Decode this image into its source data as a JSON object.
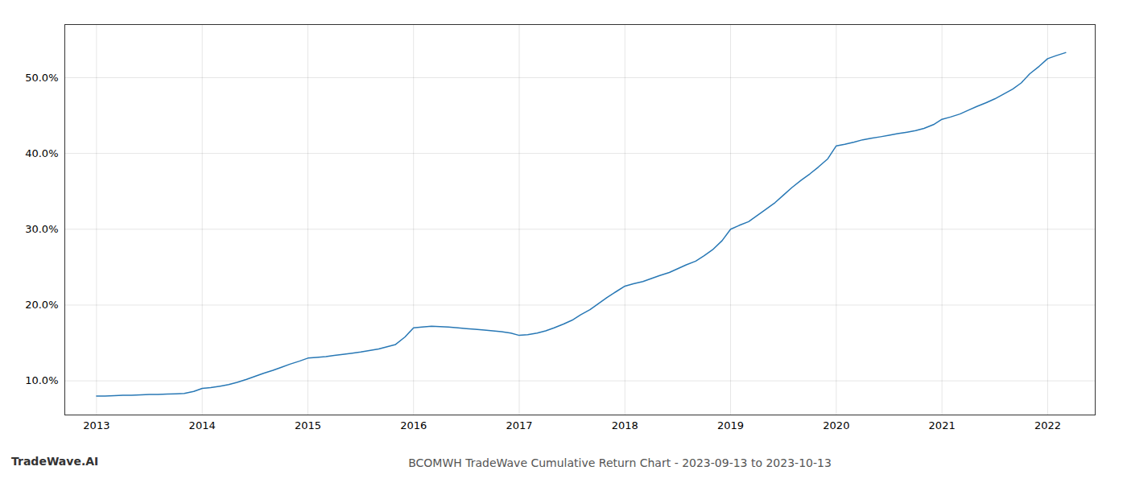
{
  "chart_data": {
    "type": "line",
    "title": "BCOMWH TradeWave Cumulative Return Chart - 2023-09-13 to 2023-10-13",
    "annotations": [
      "TradeWave.AI"
    ],
    "color": "#2878b5",
    "grid": true,
    "x": [
      2013.0,
      2013.08,
      2013.17,
      2013.25,
      2013.33,
      2013.42,
      2013.5,
      2013.58,
      2013.67,
      2013.75,
      2013.83,
      2013.92,
      2014.0,
      2014.08,
      2014.17,
      2014.25,
      2014.33,
      2014.42,
      2014.5,
      2014.58,
      2014.67,
      2014.75,
      2014.83,
      2014.92,
      2015.0,
      2015.08,
      2015.17,
      2015.25,
      2015.33,
      2015.42,
      2015.5,
      2015.58,
      2015.67,
      2015.75,
      2015.83,
      2015.92,
      2016.0,
      2016.08,
      2016.17,
      2016.25,
      2016.33,
      2016.42,
      2016.5,
      2016.58,
      2016.67,
      2016.75,
      2016.83,
      2016.92,
      2017.0,
      2017.08,
      2017.17,
      2017.25,
      2017.33,
      2017.42,
      2017.5,
      2017.58,
      2017.67,
      2017.75,
      2017.83,
      2017.92,
      2018.0,
      2018.08,
      2018.17,
      2018.25,
      2018.33,
      2018.42,
      2018.5,
      2018.58,
      2018.67,
      2018.75,
      2018.83,
      2018.92,
      2019.0,
      2019.08,
      2019.17,
      2019.25,
      2019.33,
      2019.42,
      2019.5,
      2019.58,
      2019.67,
      2019.75,
      2019.83,
      2019.92,
      2020.0,
      2020.08,
      2020.17,
      2020.25,
      2020.33,
      2020.42,
      2020.5,
      2020.58,
      2020.67,
      2020.75,
      2020.83,
      2020.92,
      2021.0,
      2021.08,
      2021.17,
      2021.25,
      2021.33,
      2021.42,
      2021.5,
      2021.58,
      2021.67,
      2021.75,
      2021.83,
      2021.92,
      2022.0,
      2022.08,
      2022.17
    ],
    "values": [
      8.0,
      8.0,
      8.05,
      8.1,
      8.1,
      8.15,
      8.2,
      8.2,
      8.25,
      8.3,
      8.35,
      8.6,
      9.0,
      9.1,
      9.3,
      9.5,
      9.8,
      10.2,
      10.6,
      11.0,
      11.4,
      11.8,
      12.2,
      12.6,
      13.0,
      13.1,
      13.2,
      13.35,
      13.5,
      13.65,
      13.8,
      14.0,
      14.2,
      14.5,
      14.8,
      15.8,
      17.0,
      17.1,
      17.2,
      17.15,
      17.1,
      17.0,
      16.9,
      16.8,
      16.7,
      16.6,
      16.5,
      16.3,
      16.0,
      16.1,
      16.3,
      16.6,
      17.0,
      17.5,
      18.0,
      18.7,
      19.4,
      20.2,
      21.0,
      21.8,
      22.5,
      22.8,
      23.1,
      23.5,
      23.9,
      24.3,
      24.8,
      25.3,
      25.8,
      26.5,
      27.3,
      28.5,
      30.0,
      30.5,
      31.0,
      31.8,
      32.6,
      33.5,
      34.5,
      35.5,
      36.5,
      37.3,
      38.2,
      39.3,
      41.0,
      41.2,
      41.5,
      41.8,
      42.0,
      42.2,
      42.4,
      42.6,
      42.8,
      43.0,
      43.3,
      43.8,
      44.5,
      44.8,
      45.2,
      45.7,
      46.2,
      46.7,
      47.2,
      47.8,
      48.5,
      49.3,
      50.5,
      51.5,
      52.5,
      52.9,
      53.3
    ],
    "xlim": [
      2012.7,
      2022.45
    ],
    "ylim": [
      5.5,
      57.0
    ],
    "xticks": [
      2013,
      2014,
      2015,
      2016,
      2017,
      2018,
      2019,
      2020,
      2021,
      2022
    ],
    "yticks": [
      {
        "value": 10.0,
        "label": "10.0%"
      },
      {
        "value": 20.0,
        "label": "20.0%"
      },
      {
        "value": 30.0,
        "label": "30.0%"
      },
      {
        "value": 40.0,
        "label": "40.0%"
      },
      {
        "value": 50.0,
        "label": "50.0%"
      }
    ]
  }
}
